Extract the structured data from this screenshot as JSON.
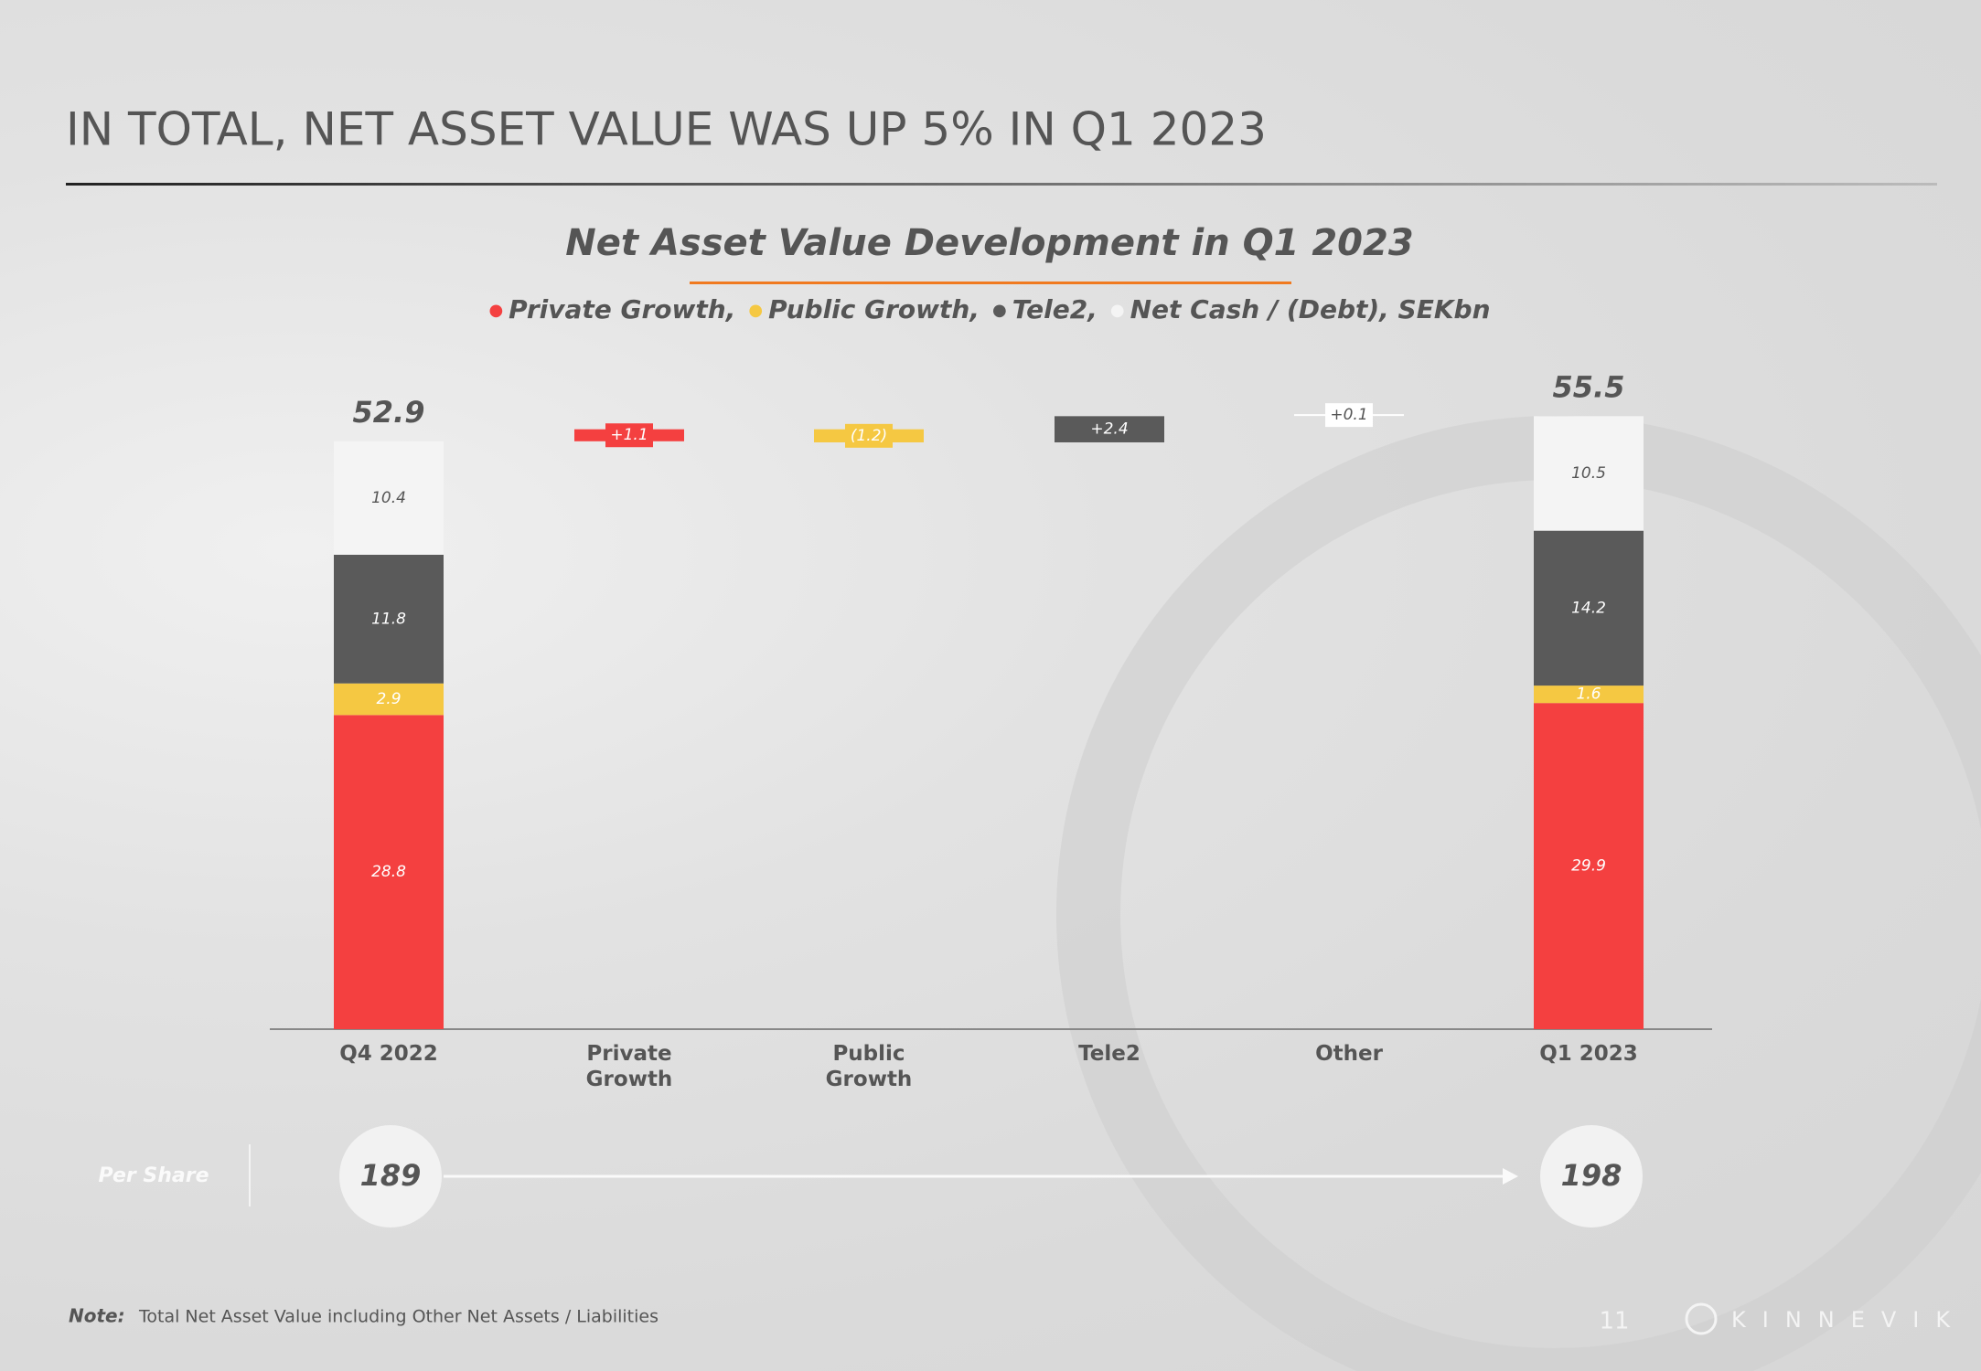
{
  "header": {
    "title": "IN TOTAL, NET ASSET VALUE WAS UP 5% IN Q1 2023"
  },
  "chart_data": {
    "type": "waterfall",
    "title": "Net Asset Value Development in Q1 2023",
    "categories": [
      "Q4 2022",
      "Private Growth",
      "Public Growth",
      "Tele2",
      "Other",
      "Q1 2023"
    ],
    "series": [
      {
        "name": "Private Growth,",
        "color": "#f44040",
        "values": [
          28.8,
          null,
          null,
          null,
          null,
          29.9
        ]
      },
      {
        "name": "Public Growth,",
        "color": "#f5c842",
        "values": [
          2.9,
          null,
          null,
          null,
          null,
          1.6
        ]
      },
      {
        "name": "Tele2,",
        "color": "#5a5a5a",
        "values": [
          11.8,
          null,
          null,
          null,
          null,
          14.2
        ]
      },
      {
        "name": "Net Cash / (Debt), SEKbn",
        "color": "#f4f4f4",
        "values": [
          10.4,
          null,
          null,
          null,
          null,
          10.5
        ]
      }
    ],
    "totals": {
      "values": [
        52.9,
        null,
        null,
        null,
        null,
        55.5
      ]
    },
    "changes": {
      "values": [
        null,
        1.1,
        -1.2,
        2.4,
        0.1,
        null
      ],
      "value_labels": [
        null,
        "+1.1",
        "(1.2)",
        "+2.4",
        "+0.1",
        null
      ],
      "colors": [
        null,
        "#f44040",
        "#f5c842",
        "#5a5a5a",
        "#ffffff",
        null
      ]
    },
    "ylim": [
      0,
      60
    ]
  },
  "per_share": {
    "label": "Per Share",
    "values": [
      189,
      198
    ]
  },
  "footer": {
    "note_label": "Note:",
    "note": "Total Net Asset Value including Other Net Assets / Liabilities",
    "page": "11",
    "brand": "KINNEVIK"
  }
}
